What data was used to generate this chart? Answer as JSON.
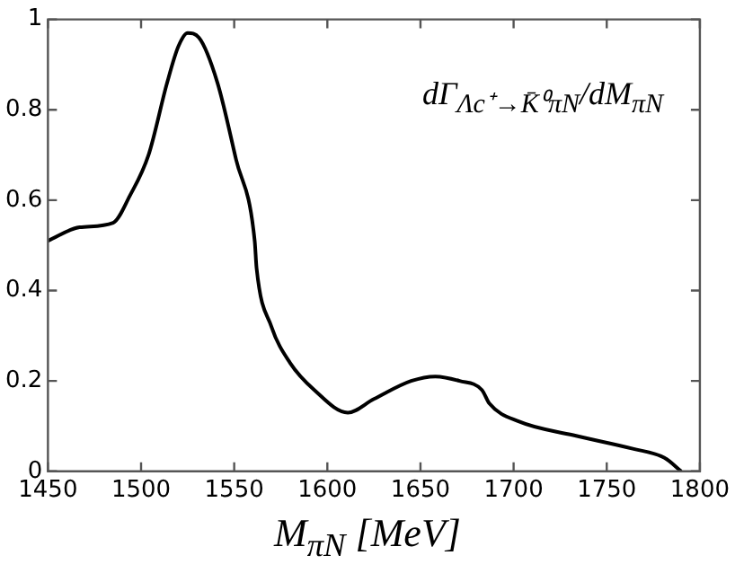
{
  "chart_data": {
    "type": "line",
    "xlabel": "M$_{πN}$ [MeV]",
    "annotations": [
      "dΓ$_{Λc⁺→K̄⁰πN}$/dM$_{πN}$"
    ],
    "x": [
      1450,
      1467,
      1485,
      1494,
      1504,
      1514,
      1520,
      1525,
      1531,
      1541,
      1551,
      1561,
      1562,
      1570,
      1580,
      1593,
      1611,
      1625,
      1645,
      1658,
      1671,
      1683,
      1687,
      1703,
      1732,
      1764,
      1781,
      1790
    ],
    "series": [
      {
        "color": "#000000",
        "values": [
          0.51,
          0.54,
          0.55,
          0.61,
          0.7,
          0.86,
          0.94,
          0.97,
          0.96,
          0.86,
          0.69,
          0.51,
          0.45,
          0.32,
          0.24,
          0.18,
          0.13,
          0.16,
          0.2,
          0.21,
          0.2,
          0.18,
          0.15,
          0.11,
          0.08,
          0.05,
          0.03,
          0.0
        ]
      }
    ],
    "xlim": [
      1450,
      1800
    ],
    "xticks": [
      1450,
      1500,
      1550,
      1600,
      1650,
      1700,
      1750,
      1800
    ],
    "ylim": [
      0,
      1
    ],
    "yticks": [
      0,
      0.2,
      0.4,
      0.6,
      0.8,
      1
    ],
    "grid": false,
    "legend": false,
    "marker": "none",
    "line_style": "solid"
  }
}
